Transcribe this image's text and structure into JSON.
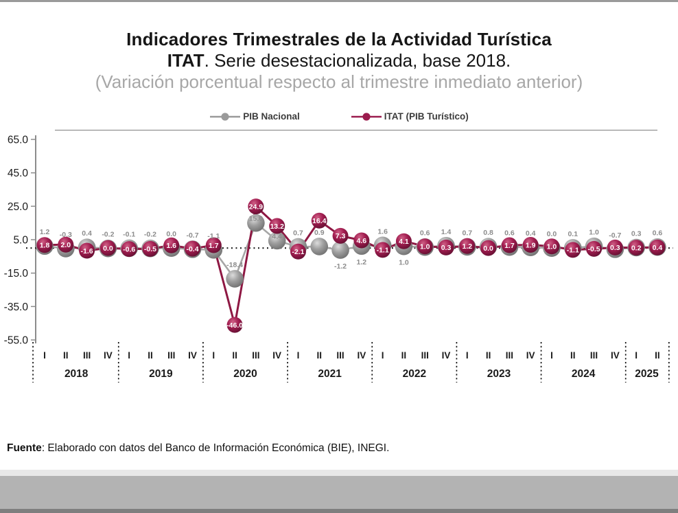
{
  "header": {
    "title": "Indicadores Trimestrales de la Actividad Turística",
    "subtitle_bold": "ITAT",
    "subtitle_rest": ". Serie desestacionalizada, base 2018.",
    "note": "(Variación porcentual respecto al trimestre inmediato anterior)"
  },
  "legend": {
    "items": [
      {
        "label": "PIB Nacional",
        "color": "#9a9a9a"
      },
      {
        "label": "ITAT (PIB Turístico)",
        "color": "#9b1c4e"
      }
    ]
  },
  "chart_data": {
    "type": "line",
    "title": "Indicadores Trimestrales de la Actividad Turística ITAT. Serie desestacionalizada, base 2018.",
    "subtitle": "(Variación porcentual respecto al trimestre inmediato anterior)",
    "xlabel": "",
    "ylabel": "",
    "legend_position": "top",
    "ylim": [
      -55,
      65
    ],
    "yticks": [
      65.0,
      45.0,
      25.0,
      5.0,
      -15.0,
      -35.0,
      -55.0
    ],
    "zero_reference_dotted_line": true,
    "years": [
      {
        "year": "2018",
        "quarters": [
          "I",
          "II",
          "III",
          "IV"
        ]
      },
      {
        "year": "2019",
        "quarters": [
          "I",
          "II",
          "III",
          "IV"
        ]
      },
      {
        "year": "2020",
        "quarters": [
          "I",
          "II",
          "III",
          "IV"
        ]
      },
      {
        "year": "2021",
        "quarters": [
          "I",
          "II",
          "III",
          "IV"
        ]
      },
      {
        "year": "2022",
        "quarters": [
          "I",
          "II",
          "III",
          "IV"
        ]
      },
      {
        "year": "2023",
        "quarters": [
          "I",
          "II",
          "III",
          "IV"
        ]
      },
      {
        "year": "2024",
        "quarters": [
          "I",
          "II",
          "III",
          "IV"
        ]
      },
      {
        "year": "2025",
        "quarters": [
          "I",
          "II"
        ]
      }
    ],
    "series": [
      {
        "name": "PIB Nacional",
        "marker_color": "#9a9a9a",
        "line_color": "#a6a6a6",
        "label_color": "#8c8c8c",
        "label_side_default": "above",
        "label_side_overrides": {
          "10": "on",
          "11": "on",
          "14": "below",
          "15": "below",
          "17": "below"
        },
        "values": [
          1.2,
          -0.3,
          0.4,
          -0.2,
          -0.1,
          -0.2,
          0.0,
          -0.7,
          -1.1,
          -18.4,
          15.0,
          4.4,
          0.7,
          0.9,
          -1.2,
          1.2,
          1.6,
          1.0,
          0.6,
          1.4,
          0.7,
          0.8,
          0.6,
          0.4,
          0.0,
          0.1,
          1.0,
          -0.7,
          0.3,
          0.6
        ]
      },
      {
        "name": "ITAT (PIB Turístico)",
        "marker_color": "#9b1c4e",
        "line_color": "#8e1843",
        "label_color": "#ffffff",
        "label_side_default": "on-marker",
        "values": [
          1.8,
          2.0,
          -1.6,
          0.0,
          -0.6,
          -0.5,
          1.6,
          -0.4,
          1.7,
          -46.0,
          24.9,
          13.2,
          -2.1,
          16.4,
          7.3,
          4.6,
          -1.1,
          4.1,
          1.0,
          0.3,
          1.2,
          0.0,
          1.7,
          1.9,
          1.0,
          -1.1,
          -0.5,
          0.3,
          0.2,
          0.4
        ]
      }
    ]
  },
  "footer": {
    "source_bold": "Fuente",
    "source_rest": ": Elaborado con datos del Banco de Información Económica (BIE), INEGI."
  }
}
